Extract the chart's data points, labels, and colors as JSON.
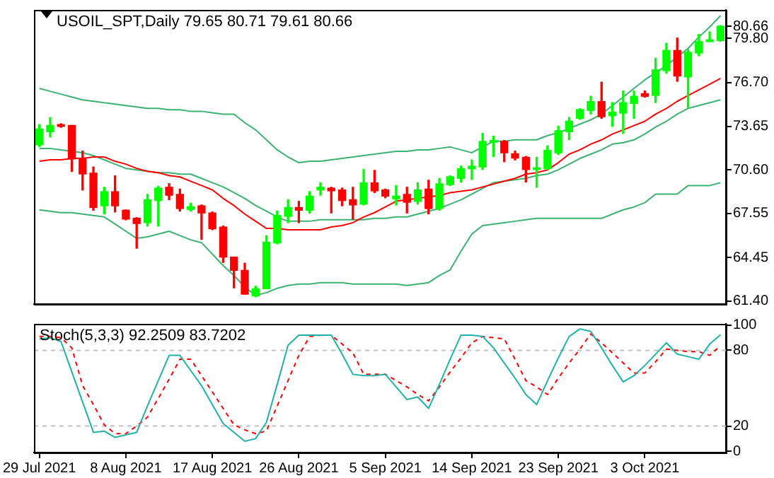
{
  "chart_data": [
    {
      "type": "candlestick",
      "title": "USOIL_SPT,Daily 79.65 80.71 79.61 80.66",
      "tick_labels": "y",
      "categories": [
        null,
        null,
        null,
        null,
        null,
        null,
        null,
        null,
        null,
        null,
        null,
        null,
        null,
        null,
        null,
        null,
        null,
        null,
        null,
        null,
        null,
        null,
        null,
        null,
        null,
        null,
        null,
        null,
        null,
        null,
        null,
        null,
        null,
        null,
        null,
        null,
        null,
        null,
        null,
        null,
        null,
        null,
        null,
        null,
        null,
        null,
        null,
        null,
        null,
        null,
        null,
        null,
        null,
        null,
        null,
        null,
        null,
        null,
        null,
        null,
        null,
        null,
        null,
        null
      ],
      "ohlc": [
        [
          72.35,
          73.77,
          72.22,
          73.46
        ],
        [
          73.27,
          74.26,
          72.9,
          73.71
        ],
        [
          73.77,
          73.83,
          73.58,
          73.64
        ],
        [
          73.71,
          73.71,
          70.49,
          71.36
        ],
        [
          71.36,
          71.91,
          69.19,
          70.31
        ],
        [
          70.37,
          70.8,
          67.77,
          67.96
        ],
        [
          68.08,
          69.38,
          67.52,
          69.07
        ],
        [
          69.07,
          70.18,
          67.65,
          68.08
        ],
        [
          67.77,
          67.8,
          67.1,
          67.15
        ],
        [
          67.21,
          67.25,
          65.11,
          66.84
        ],
        [
          66.9,
          68.88,
          66.66,
          68.51
        ],
        [
          68.45,
          69.44,
          66.66,
          69.32
        ],
        [
          69.38,
          69.63,
          68.51,
          68.82
        ],
        [
          68.88,
          69.25,
          67.71,
          67.89
        ],
        [
          67.83,
          68.26,
          67.71,
          68.02
        ],
        [
          68.08,
          68.14,
          65.73,
          67.58
        ],
        [
          67.58,
          67.65,
          66.41,
          66.47
        ],
        [
          66.59,
          66.66,
          64.12,
          64.49
        ],
        [
          64.49,
          64.49,
          62.33,
          63.56
        ],
        [
          63.56,
          64.06,
          61.89,
          61.89
        ],
        [
          61.77,
          62.45,
          61.71,
          62.27
        ],
        [
          62.27,
          65.98,
          62.27,
          65.54
        ],
        [
          65.48,
          67.71,
          65.42,
          67.4
        ],
        [
          67.34,
          68.51,
          66.9,
          67.96
        ],
        [
          67.96,
          68.39,
          66.9,
          67.77
        ],
        [
          67.77,
          69.07,
          67.58,
          68.76
        ],
        [
          69.19,
          69.69,
          68.82,
          69.38
        ],
        [
          69.32,
          69.38,
          67.58,
          69.13
        ],
        [
          69.19,
          69.32,
          68.08,
          68.45
        ],
        [
          68.51,
          69.38,
          67.15,
          68.14
        ],
        [
          68.2,
          70.62,
          68.14,
          69.69
        ],
        [
          69.69,
          70.56,
          69.01,
          69.13
        ],
        [
          69.19,
          69.25,
          68.64,
          68.76
        ],
        [
          68.57,
          69.5,
          68.14,
          68.76
        ],
        [
          68.88,
          69.38,
          67.58,
          68.33
        ],
        [
          68.39,
          69.69,
          68.2,
          69.19
        ],
        [
          69.25,
          69.87,
          67.52,
          67.89
        ],
        [
          67.89,
          70.0,
          67.77,
          69.62
        ],
        [
          69.56,
          70.18,
          69.5,
          70.12
        ],
        [
          70.0,
          70.86,
          69.75,
          70.68
        ],
        [
          70.68,
          71.29,
          69.93,
          70.86
        ],
        [
          70.8,
          73.15,
          70.62,
          72.59
        ],
        [
          72.53,
          72.96,
          71.54,
          72.66
        ],
        [
          72.59,
          72.66,
          71.17,
          71.79
        ],
        [
          71.73,
          71.91,
          71.29,
          71.42
        ],
        [
          71.48,
          71.54,
          69.75,
          70.62
        ],
        [
          70.62,
          71.48,
          69.38,
          70.74
        ],
        [
          70.68,
          72.28,
          70.62,
          71.97
        ],
        [
          71.79,
          73.65,
          71.67,
          73.34
        ],
        [
          73.27,
          74.26,
          72.72,
          74.01
        ],
        [
          74.2,
          74.88,
          74.14,
          74.82
        ],
        [
          74.76,
          75.75,
          74.51,
          75.38
        ],
        [
          75.38,
          76.74,
          74.2,
          74.32
        ],
        [
          74.39,
          75.31,
          73.65,
          74.64
        ],
        [
          74.57,
          76.12,
          73.15,
          75.31
        ],
        [
          75.25,
          76.12,
          74.2,
          75.75
        ],
        [
          75.93,
          76.12,
          75.69,
          75.75
        ],
        [
          75.81,
          78.41,
          75.31,
          77.6
        ],
        [
          77.54,
          79.46,
          77.36,
          78.96
        ],
        [
          78.96,
          79.83,
          76.8,
          77.17
        ],
        [
          77.11,
          79.02,
          74.94,
          78.84
        ],
        [
          78.78,
          80.08,
          78.59,
          79.58
        ],
        [
          79.58,
          80.26,
          79.58,
          79.71
        ],
        [
          79.65,
          80.71,
          79.61,
          80.66
        ]
      ],
      "colors": [
        "#00ff00",
        "#00ff00",
        "#ff0000",
        "#ff0000",
        "#ff0000",
        "#ff0000",
        "#00ff00",
        "#ff0000",
        "#ff0000",
        "#ff0000",
        "#00ff00",
        "#00ff00",
        "#ff0000",
        "#ff0000",
        "#00ff00",
        "#ff0000",
        "#ff0000",
        "#ff0000",
        "#ff0000",
        "#ff0000",
        "#00ff00",
        "#00ff00",
        "#00ff00",
        "#00ff00",
        "#ff0000",
        "#00ff00",
        "#00ff00",
        "#ff0000",
        "#ff0000",
        "#ff0000",
        "#00ff00",
        "#ff0000",
        "#ff0000",
        "#00ff00",
        "#ff0000",
        "#00ff00",
        "#ff0000",
        "#00ff00",
        "#00ff00",
        "#00ff00",
        "#00ff00",
        "#00ff00",
        "#00ff00",
        "#ff0000",
        "#ff0000",
        "#ff0000",
        "#00ff00",
        "#00ff00",
        "#00ff00",
        "#00ff00",
        "#00ff00",
        "#00ff00",
        "#ff0000",
        "#00ff00",
        "#00ff00",
        "#00ff00",
        "#ff0000",
        "#00ff00",
        "#00ff00",
        "#ff0000",
        "#00ff00",
        "#00ff00",
        "#00ff00",
        "#00ff00"
      ],
      "series": [
        {
          "type": "line",
          "color": "#3cb371",
          "values": [
            76.3,
            76.1,
            75.9,
            75.7,
            75.5,
            75.4,
            75.3,
            75.2,
            75.1,
            75.0,
            74.9,
            74.9,
            74.8,
            74.8,
            74.7,
            74.7,
            74.6,
            74.5,
            74.5,
            73.9,
            73.4,
            72.7,
            72.0,
            71.5,
            71.1,
            71.2,
            71.2,
            71.3,
            71.4,
            71.5,
            71.6,
            71.7,
            71.8,
            71.9,
            71.9,
            72.0,
            72.0,
            72.1,
            72.2,
            72.0,
            71.8,
            72.2,
            72.6,
            72.6,
            72.7,
            72.7,
            72.7,
            73.0,
            73.2,
            73.5,
            73.8,
            74.1,
            74.5,
            75.1,
            75.7,
            76.3,
            76.9,
            77.4,
            77.9,
            78.5,
            79.1,
            79.9,
            80.6,
            81.4
          ]
        },
        {
          "type": "line",
          "color": "#ff0000",
          "values": [
            71.2,
            71.3,
            71.3,
            71.4,
            71.4,
            71.5,
            71.5,
            71.2,
            71.0,
            70.7,
            70.5,
            70.4,
            70.2,
            70.1,
            69.8,
            69.5,
            69.2,
            68.6,
            68.1,
            67.5,
            67.0,
            66.5,
            66.5,
            66.4,
            66.4,
            66.4,
            66.4,
            66.6,
            66.7,
            66.9,
            67.3,
            67.6,
            68.0,
            68.4,
            68.5,
            68.6,
            68.7,
            68.8,
            69.0,
            69.1,
            69.2,
            69.4,
            69.6,
            69.8,
            70.0,
            70.3,
            70.4,
            70.6,
            71.1,
            71.7,
            72.0,
            72.4,
            72.7,
            73.1,
            73.4,
            73.7,
            74.0,
            74.5,
            74.9,
            75.4,
            75.8,
            76.2,
            76.6,
            77.0
          ]
        },
        {
          "type": "line",
          "color": "#3cb371",
          "values": [
            72.1,
            72.1,
            72.0,
            71.9,
            71.8,
            71.6,
            71.3,
            71.0,
            70.7,
            70.6,
            70.5,
            70.4,
            70.4,
            70.3,
            70.3,
            70.0,
            69.7,
            69.4,
            69.0,
            68.6,
            68.1,
            67.7,
            67.3,
            67.0,
            67.0,
            67.0,
            67.1,
            67.1,
            67.1,
            67.1,
            67.1,
            67.2,
            67.2,
            67.3,
            67.3,
            67.5,
            67.7,
            67.9,
            68.2,
            68.5,
            68.9,
            69.3,
            69.7,
            69.8,
            69.9,
            70.0,
            70.2,
            70.3,
            70.6,
            71.0,
            71.4,
            71.7,
            72.0,
            72.4,
            72.5,
            72.7,
            73.1,
            73.6,
            74.0,
            74.5,
            74.9,
            75.1,
            75.3,
            75.5
          ]
        },
        {
          "type": "line",
          "color": "#3cb371",
          "values": [
            67.8,
            67.7,
            67.6,
            67.6,
            67.5,
            67.4,
            67.3,
            66.8,
            66.3,
            65.8,
            65.9,
            66.1,
            66.3,
            66.0,
            65.7,
            65.5,
            64.7,
            63.9,
            63.2,
            62.4,
            61.8,
            62.0,
            62.3,
            62.5,
            62.6,
            62.6,
            62.7,
            62.7,
            62.7,
            62.6,
            62.6,
            62.6,
            62.6,
            62.6,
            62.5,
            62.6,
            62.7,
            63.2,
            63.6,
            64.9,
            66.1,
            66.7,
            66.8,
            66.9,
            67.0,
            67.1,
            67.2,
            67.2,
            67.2,
            67.2,
            67.2,
            67.2,
            67.2,
            67.5,
            67.8,
            68.0,
            68.3,
            68.9,
            68.9,
            68.9,
            69.5,
            69.5,
            69.5,
            69.7
          ]
        }
      ],
      "ylim": [
        61.2,
        81.8
      ],
      "yticks": [
        {
          "value": 80.66,
          "label": "80.66"
        },
        {
          "value": 79.8,
          "label": "79.80"
        },
        {
          "value": 76.7,
          "label": "76.70"
        },
        {
          "value": 73.65,
          "label": "73.65"
        },
        {
          "value": 70.6,
          "label": "70.60"
        },
        {
          "value": 67.55,
          "label": "67.55"
        },
        {
          "value": 64.45,
          "label": "64.45"
        },
        {
          "value": 61.4,
          "label": "61.40"
        }
      ]
    },
    {
      "type": "line",
      "title": "Stoch(5,3,3) 92.2509 83.7202",
      "categories": [
        "29 Jul 2021",
        null,
        null,
        null,
        null,
        null,
        null,
        null,
        "8 Aug 2021",
        null,
        null,
        null,
        null,
        null,
        null,
        null,
        "17 Aug 2021",
        null,
        null,
        null,
        null,
        null,
        null,
        null,
        "26 Aug 2021",
        null,
        null,
        null,
        null,
        null,
        null,
        null,
        "5 Sep 2021",
        null,
        null,
        null,
        null,
        null,
        null,
        null,
        "14 Sep 2021",
        null,
        null,
        null,
        null,
        null,
        null,
        null,
        "23 Sep 2021",
        null,
        null,
        null,
        null,
        null,
        null,
        null,
        "3 Oct 2021",
        null,
        null,
        null,
        null,
        null,
        null,
        null
      ],
      "series": [
        {
          "color": "#20b2aa",
          "values": [
            89,
            90,
            87,
            63,
            39,
            15,
            16,
            11,
            13,
            15,
            36,
            56,
            76,
            76,
            64,
            52,
            37,
            22,
            15,
            8,
            10,
            23,
            53,
            84,
            92,
            92,
            92,
            92,
            77,
            61,
            60,
            60,
            61,
            51,
            41,
            43,
            34,
            53,
            73,
            92,
            92,
            91,
            82,
            70,
            58,
            45,
            37,
            56,
            74,
            91,
            97,
            95,
            82,
            68,
            55,
            60,
            68,
            77,
            86,
            77,
            75,
            73,
            85,
            92.2509
          ]
        },
        {
          "color": "#ff0000",
          "line_style": "dashed",
          "values": [
            91,
            91,
            90,
            82,
            52,
            37,
            21,
            14,
            14,
            20,
            27,
            42,
            57,
            73,
            73,
            60,
            47,
            34,
            21,
            17,
            14,
            16,
            36,
            56,
            76,
            91,
            92,
            92,
            85,
            78,
            61,
            61,
            61,
            56,
            51,
            45,
            40,
            51,
            63,
            74,
            86,
            91,
            90,
            89,
            73,
            56,
            51,
            45,
            58,
            70,
            81,
            93,
            86,
            78,
            70,
            62,
            62,
            71,
            81,
            80,
            79,
            79,
            76,
            83.7202
          ]
        }
      ],
      "ref_lines": [
        {
          "axis": "y",
          "value": 80,
          "color": "#c0c0c0",
          "line_style": "dashed"
        },
        {
          "axis": "y",
          "value": 20,
          "color": "#c0c0c0",
          "line_style": "dashed"
        }
      ],
      "ylim": [
        -1,
        101
      ],
      "yticks": [
        100,
        80,
        20,
        0
      ]
    }
  ]
}
